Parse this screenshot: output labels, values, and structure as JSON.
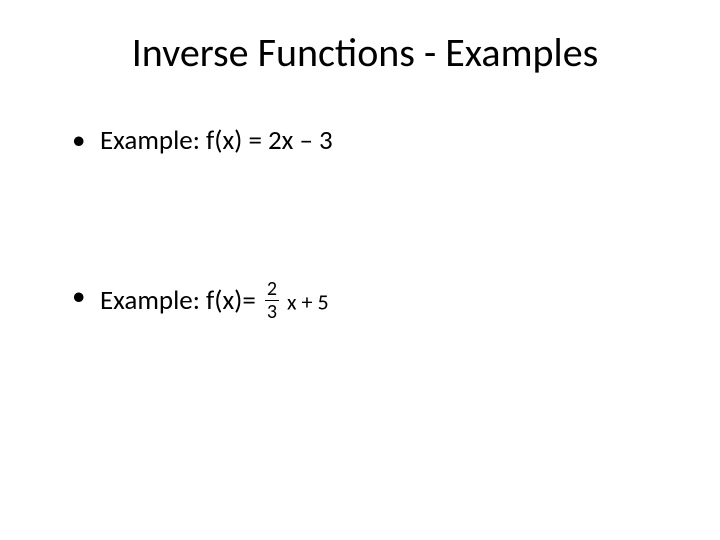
{
  "slide": {
    "title": "Inverse Functions - Examples",
    "title_fontsize": 40,
    "title_color": "#000000",
    "background_color": "#ffffff",
    "bullets": [
      {
        "label": "Example:  f(x) = 2x – 3",
        "has_fraction": false
      },
      {
        "label_prefix": "Example:  f(x)= ",
        "has_fraction": true,
        "fraction": {
          "numerator": "2",
          "denominator": "3"
        },
        "label_suffix": " x + 5"
      }
    ],
    "body_fontsize": 27,
    "body_color": "#000000",
    "fraction_fontsize": 20
  }
}
